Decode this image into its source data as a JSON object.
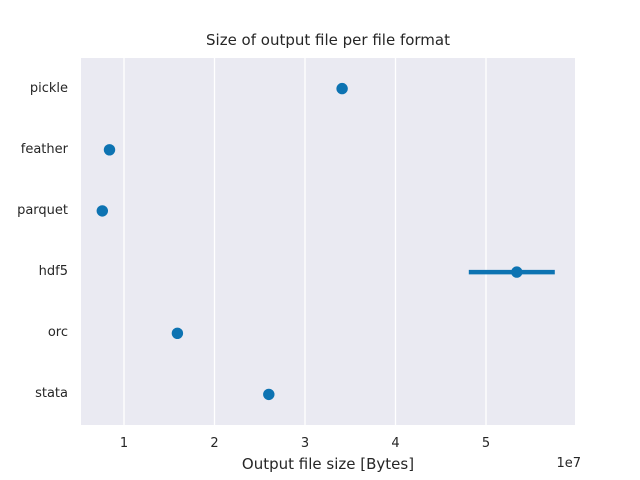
{
  "chart_data": {
    "type": "scatter",
    "subtype": "pointplot",
    "orientation": "horizontal",
    "title": "Size of output file per file format",
    "xlabel": "Output file size [Bytes]",
    "ylabel": "",
    "offset_text": "1e7",
    "categories": [
      "pickle",
      "feather",
      "parquet",
      "hdf5",
      "orc",
      "stata"
    ],
    "values": [
      34100000,
      8400000,
      7600000,
      53400000,
      15900000,
      26000000
    ],
    "error_intervals": [
      null,
      null,
      null,
      [
        48100000,
        57600000
      ],
      null,
      null
    ],
    "xlim": [
      5250000,
      59830000
    ],
    "xticks": [
      10000000,
      20000000,
      30000000,
      40000000,
      50000000
    ],
    "xtick_labels": [
      "1",
      "2",
      "3",
      "4",
      "5"
    ],
    "grid": "vertical-only",
    "legend": "none",
    "styles": {
      "point_color": "#0d73b2",
      "plot_background": "#eaeaf2",
      "grid_color": "#ffffff",
      "text_color": "#262626",
      "figure_background": "#ffffff",
      "point_radius": 5.7,
      "errorbar_width": 4.5
    }
  }
}
